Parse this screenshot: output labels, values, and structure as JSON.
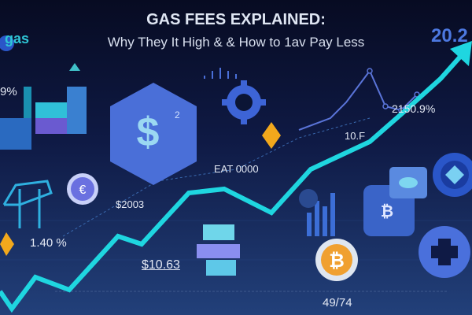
{
  "header": {
    "title": "GAS FEES EXPLAINED:",
    "subtitle": "Why They It High & & How to 1av Pay Less",
    "brand": "gas",
    "year_fragment": "20.2"
  },
  "labels": {
    "percent_top_left": "9%",
    "percent_right": "2150.9%",
    "small_value": "10.F",
    "eat": "EAT 0000",
    "price_mid": "$2003",
    "percent_left": "1.40 %",
    "price_low": "$10.63",
    "ratio": "49/74"
  },
  "icons": [
    "dollar-hexagon-icon",
    "gear-icon",
    "euro-coin-icon",
    "ethereum-diamond-icon",
    "bitcoin-coin-icon",
    "bitcoin-wallet-icon",
    "cloud-icon",
    "trend-arrow-icon",
    "server-stack-icon"
  ],
  "colors": {
    "accent_cyan": "#1fd6e0",
    "primary_blue": "#4a6fd8",
    "bitcoin_orange": "#f0a030",
    "diamond_yellow": "#f2a81c"
  }
}
